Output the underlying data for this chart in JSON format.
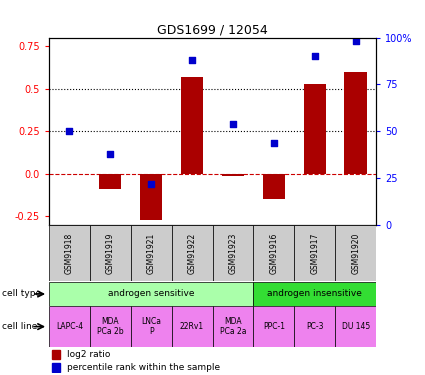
{
  "title": "GDS1699 / 12054",
  "samples": [
    "GSM91918",
    "GSM91919",
    "GSM91921",
    "GSM91922",
    "GSM91923",
    "GSM91916",
    "GSM91917",
    "GSM91920"
  ],
  "log2_ratio": [
    0.0,
    -0.09,
    -0.27,
    0.57,
    -0.01,
    -0.15,
    0.53,
    0.6
  ],
  "percentile_rank_raw": [
    50,
    38,
    22,
    88,
    54,
    44,
    90,
    98
  ],
  "ylim_left": [
    -0.3,
    0.8
  ],
  "yticks_left": [
    -0.25,
    0.0,
    0.25,
    0.5,
    0.75
  ],
  "yticks_right": [
    0,
    25,
    50,
    75,
    100
  ],
  "bar_color": "#AA0000",
  "dot_color": "#0000CC",
  "dotted_lines": [
    0.25,
    0.5
  ],
  "cell_type_groups": [
    {
      "label": "androgen sensitive",
      "start": 0,
      "end": 5,
      "color": "#AAFFAA"
    },
    {
      "label": "androgen insensitive",
      "start": 5,
      "end": 8,
      "color": "#33DD33"
    }
  ],
  "cell_lines": [
    "LAPC-4",
    "MDA\nPCa 2b",
    "LNCa\nP",
    "22Rv1",
    "MDA\nPCa 2a",
    "PPC-1",
    "PC-3",
    "DU 145"
  ],
  "cell_line_color": "#EE82EE",
  "legend_log2": "log2 ratio",
  "legend_pct": "percentile rank within the sample",
  "bar_width": 0.55,
  "bg_color": "#FFFFFF",
  "dot_size": 22,
  "sample_bg": "#CCCCCC"
}
